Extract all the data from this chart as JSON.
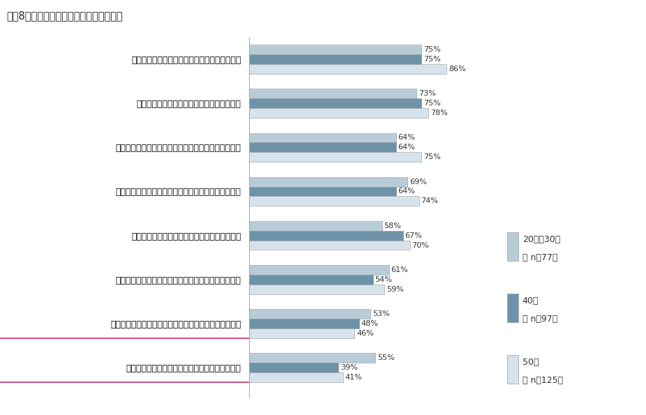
{
  "title": "図表8．　芸術に関する価値観（年代別）",
  "categories": [
    "芸術は、人々が豊かに生きるために必要である",
    "芸術は国際的な相互交流において重要である",
    "芸術に対して公的な支援が十分に行われるべきである",
    "芸術的視点は、地域の魅力の向上において重要である",
    "芸術は国家ブランドの向上において重要である",
    "芸術的視点は、産業競争力の強化において重要である",
    "芸術的視点は、企業のより良い経営において重要である",
    "芸術的視点は、あなたの仕事において重要である"
  ],
  "underline_cat_indices": [
    6,
    7
  ],
  "series": {
    "20代・30代": [
      75,
      73,
      64,
      69,
      58,
      61,
      53,
      55
    ],
    "40代": [
      75,
      75,
      64,
      64,
      67,
      54,
      48,
      39
    ],
    "50代": [
      86,
      78,
      75,
      74,
      70,
      59,
      46,
      41
    ]
  },
  "colors": {
    "20代・30代": "#b8ccd8",
    "40代": "#6e93a8",
    "50代": "#d6e3ec"
  },
  "legend_labels": [
    "20代・30代",
    "（ n＝77）",
    "40代",
    "（ n＝97）",
    "50代",
    "（ n＝125）"
  ],
  "legend_colors": [
    "#b8ccd8",
    "#6e93a8",
    "#d6e3ec"
  ],
  "bar_height": 0.22,
  "background_color": "#ffffff",
  "underline_color": "#d03060"
}
